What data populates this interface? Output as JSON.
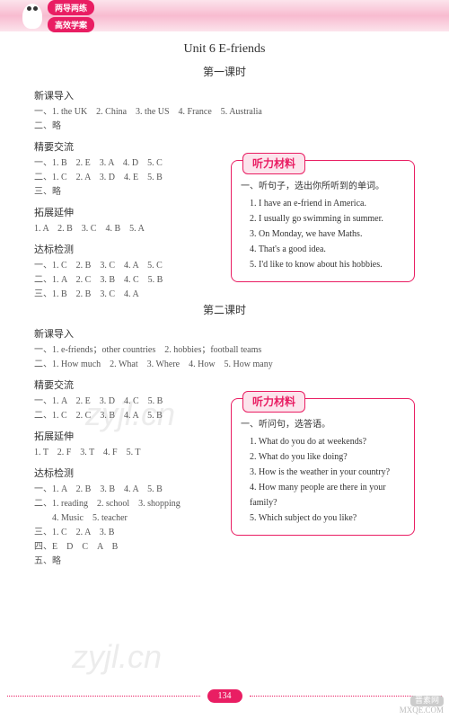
{
  "header": {
    "badge1": "两导两练",
    "badge2": "高效学案"
  },
  "unit_title": "Unit 6 E-friends",
  "lesson1": {
    "title": "第一课时",
    "sections": {
      "s1_label": "新课导入",
      "s1_l1": "一、1. the UK　2. China　3. the US　4. France　5. Australia",
      "s1_l2": "二、略",
      "s2_label": "精要交流",
      "s2_l1": "一、1. B　2. E　3. A　4. D　5. C",
      "s2_l2": "二、1. C　2. A　3. D　4. E　5. B",
      "s2_l3": "三、略",
      "s3_label": "拓展延伸",
      "s3_l1": "1. A　2. B　3. C　4. B　5. A",
      "s4_label": "达标检测",
      "s4_l1": "一、1. C　2. B　3. C　4. A　5. C",
      "s4_l2": "二、1. A　2. C　3. B　4. C　5. B",
      "s4_l3": "三、1. B　2. B　3. C　4. A"
    },
    "listening": {
      "label": "听力材料",
      "head": "一、听句子，选出你所听到的单词。",
      "i1": "1. I have an e-friend in America.",
      "i2": "2. I usually go swimming in summer.",
      "i3": "3. On Monday, we have Maths.",
      "i4": "4. That's a good idea.",
      "i5": "5. I'd like to know about his hobbies."
    }
  },
  "lesson2": {
    "title": "第二课时",
    "sections": {
      "s1_label": "新课导入",
      "s1_l1": "一、1. e-friends；other countries　2. hobbies；football teams",
      "s1_l2": "二、1. How much　2. What　3. Where　4. How　5. How many",
      "s2_label": "精要交流",
      "s2_l1": "一、1. A　2. E　3. D　4. C　5. B",
      "s2_l2": "二、1. C　2. C　3. B　4. A　5. B",
      "s3_label": "拓展延伸",
      "s3_l1": "1. T　2. F　3. T　4. F　5. T",
      "s4_label": "达标检测",
      "s4_l1": "一、1. A　2. B　3. B　4. A　5. B",
      "s4_l2": "二、1. reading　2. school　3. shopping",
      "s4_l3": "　　4. Music　5. teacher",
      "s4_l4": "三、1. C　2. A　3. B",
      "s4_l5": "四、E　D　C　A　B",
      "s4_l6": "五、略"
    },
    "listening": {
      "label": "听力材料",
      "head": "一、听问句，选答语。",
      "i1": "1. What do you do at weekends?",
      "i2": "2. What do you like doing?",
      "i3": "3. How is the weather in your country?",
      "i4": "4. How many people are there in your family?",
      "i5": "5. Which subject do you like?"
    }
  },
  "watermark": "zyjl.cn",
  "page_num": "134",
  "corner": {
    "badge": "晋素网",
    "site": "MXQE.COM"
  },
  "colors": {
    "brand": "#e91e63",
    "pink_light": "#fce4ec"
  }
}
